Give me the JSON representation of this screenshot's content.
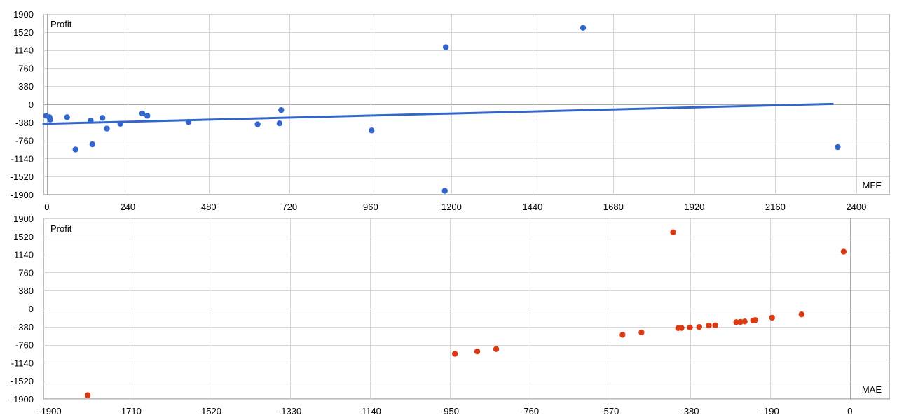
{
  "colors": {
    "mfe": "#3366cc",
    "mae": "#dc3912",
    "grid": "#d6d6d6",
    "frame": "#bdbdbd"
  },
  "chart_data": [
    {
      "type": "scatter",
      "ylabel": "Profit",
      "xlabel": "MFE",
      "xlim": [
        -10,
        2500
      ],
      "ylim": [
        -1900,
        1900
      ],
      "xticks": [
        0,
        240,
        480,
        720,
        960,
        1200,
        1440,
        1680,
        1920,
        2160,
        2400
      ],
      "yticks": [
        1900,
        1520,
        1140,
        760,
        380,
        0,
        -380,
        -760,
        -1140,
        -1520,
        -1900
      ],
      "grid": true,
      "point_color": "#3366cc",
      "trendline": {
        "x": [
          -10,
          2330
        ],
        "y": [
          -410,
          10
        ],
        "color": "#3366cc"
      },
      "points": [
        {
          "x": -2,
          "y": -240
        },
        {
          "x": 8,
          "y": -270
        },
        {
          "x": 10,
          "y": -320
        },
        {
          "x": 60,
          "y": -270
        },
        {
          "x": 85,
          "y": -950
        },
        {
          "x": 130,
          "y": -340
        },
        {
          "x": 135,
          "y": -840
        },
        {
          "x": 165,
          "y": -285
        },
        {
          "x": 178,
          "y": -510
        },
        {
          "x": 218,
          "y": -410
        },
        {
          "x": 283,
          "y": -190
        },
        {
          "x": 298,
          "y": -240
        },
        {
          "x": 420,
          "y": -370
        },
        {
          "x": 625,
          "y": -420
        },
        {
          "x": 690,
          "y": -400
        },
        {
          "x": 695,
          "y": -120
        },
        {
          "x": 963,
          "y": -550
        },
        {
          "x": 1180,
          "y": -1820
        },
        {
          "x": 1183,
          "y": 1200
        },
        {
          "x": 1590,
          "y": 1610
        },
        {
          "x": 2345,
          "y": -900
        }
      ]
    },
    {
      "type": "scatter",
      "ylabel": "Profit",
      "xlabel": "MAE",
      "xlim": [
        -1915,
        95
      ],
      "ylim": [
        -1900,
        1900
      ],
      "xticks": [
        -1900,
        -1710,
        -1520,
        -1330,
        -1140,
        -950,
        -760,
        -570,
        -380,
        -190,
        0
      ],
      "yticks": [
        1900,
        1520,
        1140,
        760,
        380,
        0,
        -380,
        -760,
        -1140,
        -1520,
        -1900
      ],
      "grid": true,
      "point_color": "#dc3912",
      "points": [
        {
          "x": -1810,
          "y": -1820
        },
        {
          "x": -938,
          "y": -950
        },
        {
          "x": -885,
          "y": -900
        },
        {
          "x": -840,
          "y": -850
        },
        {
          "x": -540,
          "y": -550
        },
        {
          "x": -495,
          "y": -500
        },
        {
          "x": -420,
          "y": 1610
        },
        {
          "x": -408,
          "y": -410
        },
        {
          "x": -400,
          "y": -405
        },
        {
          "x": -380,
          "y": -395
        },
        {
          "x": -358,
          "y": -385
        },
        {
          "x": -335,
          "y": -355
        },
        {
          "x": -320,
          "y": -350
        },
        {
          "x": -270,
          "y": -285
        },
        {
          "x": -260,
          "y": -280
        },
        {
          "x": -250,
          "y": -270
        },
        {
          "x": -230,
          "y": -250
        },
        {
          "x": -225,
          "y": -240
        },
        {
          "x": -185,
          "y": -190
        },
        {
          "x": -115,
          "y": -120
        },
        {
          "x": -15,
          "y": 1200
        }
      ]
    }
  ]
}
